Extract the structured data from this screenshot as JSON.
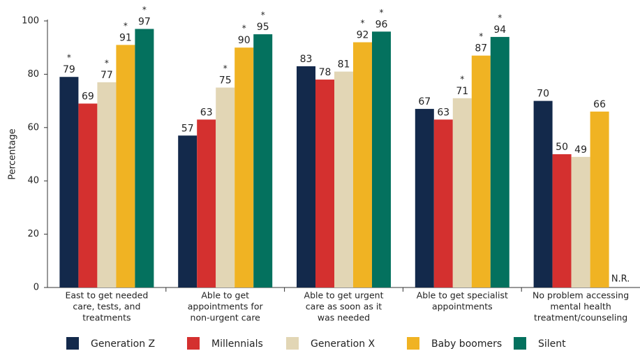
{
  "chart_data": {
    "type": "bar",
    "ylabel": "Percentage",
    "categories": [
      [
        "East to get needed",
        "care, tests, and",
        "treatments"
      ],
      [
        "Able to get",
        "appointments for",
        "non-urgent care"
      ],
      [
        "Able to get urgent",
        "care as soon as it",
        "was needed"
      ],
      [
        "Able to get specialist",
        "appointments"
      ],
      [
        "No problem accessing",
        "mental health",
        "treatment/counseling"
      ]
    ],
    "series": [
      {
        "name": "Generation Z",
        "color": "#13294b",
        "values": [
          79,
          57,
          83,
          67,
          70
        ],
        "significant": [
          true,
          false,
          false,
          false,
          false
        ]
      },
      {
        "name": "Millennials",
        "color": "#d4302f",
        "values": [
          69,
          63,
          78,
          63,
          50
        ],
        "significant": [
          false,
          false,
          false,
          false,
          false
        ]
      },
      {
        "name": "Generation X",
        "color": "#e2d6b5",
        "values": [
          77,
          75,
          81,
          71,
          49
        ],
        "significant": [
          true,
          true,
          false,
          true,
          false
        ]
      },
      {
        "name": "Baby boomers",
        "color": "#f0b323",
        "values": [
          91,
          90,
          92,
          87,
          66
        ],
        "significant": [
          true,
          true,
          true,
          true,
          false
        ]
      },
      {
        "name": "Silent",
        "color": "#04715e",
        "values": [
          97,
          95,
          96,
          94,
          null
        ],
        "significant": [
          true,
          true,
          true,
          true,
          false
        ],
        "value_labels": [
          null,
          null,
          null,
          null,
          "N.R."
        ]
      }
    ],
    "significance_marker": "*",
    "ylim": [
      0,
      100
    ],
    "yticks": [
      0,
      20,
      40,
      60,
      80,
      100
    ],
    "grid": false,
    "legend": "bottom"
  }
}
